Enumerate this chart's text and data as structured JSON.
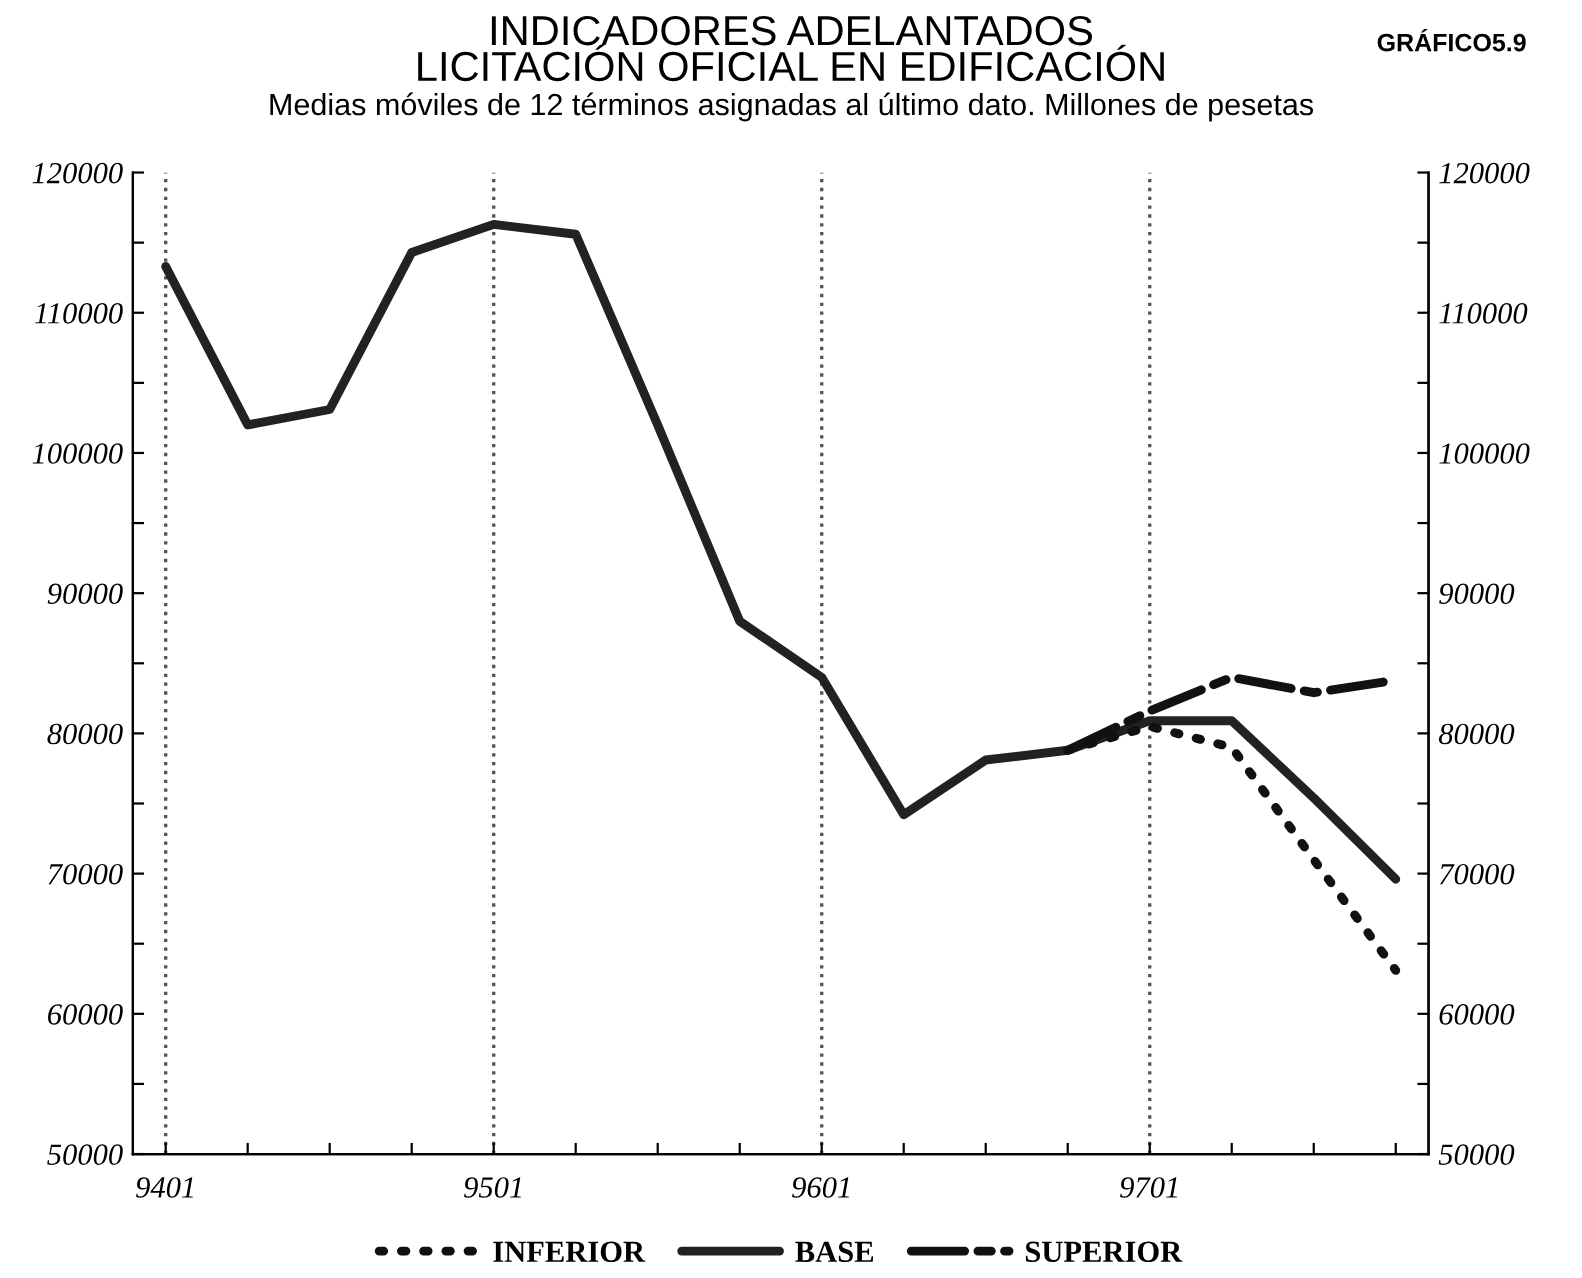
{
  "chart_data": {
    "type": "line",
    "title": "INDICADORES ADELANTADOS\nLICITACIÓN OFICIAL EN EDIFICACIÓN",
    "subtitle": "Medias móviles de 12 términos asignadas al último dato. Millones de pesetas",
    "annotations": [
      "GRÁFICO5.9"
    ],
    "categories": [
      "9401",
      null,
      null,
      null,
      "9501",
      null,
      null,
      null,
      "9601",
      null,
      null,
      null,
      "9701",
      null,
      null,
      null
    ],
    "ylim": [
      50000,
      120000
    ],
    "yticks": [
      50000,
      {
        "value": 55000,
        "label": null
      },
      60000,
      {
        "value": 65000,
        "label": null
      },
      70000,
      {
        "value": 75000,
        "label": null
      },
      80000,
      {
        "value": 85000,
        "label": null
      },
      90000,
      {
        "value": 95000,
        "label": null
      },
      100000,
      {
        "value": 105000,
        "label": null
      },
      110000,
      {
        "value": 115000,
        "label": null
      },
      120000
    ],
    "y2lim": [
      50000,
      120000
    ],
    "y2ticks": [
      50000,
      {
        "value": 55000,
        "label": null
      },
      60000,
      {
        "value": 65000,
        "label": null
      },
      70000,
      {
        "value": 75000,
        "label": null
      },
      80000,
      {
        "value": 85000,
        "label": null
      },
      90000,
      {
        "value": 95000,
        "label": null
      },
      100000,
      {
        "value": 105000,
        "label": null
      },
      110000,
      {
        "value": 115000,
        "label": null
      },
      120000
    ],
    "ref_lines": [
      {
        "axis": "x",
        "value": "9401",
        "line_style": "dotted",
        "color": "#555555"
      },
      {
        "axis": "x",
        "value": "9501",
        "line_style": "dotted",
        "color": "#555555"
      },
      {
        "axis": "x",
        "value": "9601",
        "line_style": "dotted",
        "color": "#555555"
      },
      {
        "axis": "x",
        "value": "9701",
        "line_style": "dotted",
        "color": "#555555"
      }
    ],
    "legend": "bottom",
    "series": [
      {
        "name": "INFERIOR",
        "color": "#111111",
        "line_style": "dotted",
        "values": [
          null,
          null,
          null,
          null,
          null,
          null,
          null,
          null,
          null,
          null,
          null,
          78800,
          80500,
          79000,
          71000,
          63100
        ]
      },
      {
        "name": "BASE",
        "color": "#222222",
        "line_style": "solid",
        "values": [
          113300,
          102000,
          103100,
          114300,
          116300,
          115600,
          102000,
          88000,
          84000,
          74200,
          78100,
          78800,
          80900,
          80900,
          75400,
          69600
        ]
      },
      {
        "name": "SUPERIOR",
        "color": "#111111",
        "line_style": "dashed",
        "values": [
          null,
          null,
          null,
          null,
          null,
          null,
          null,
          null,
          null,
          null,
          null,
          78800,
          81600,
          84000,
          82900,
          83800
        ]
      }
    ]
  }
}
